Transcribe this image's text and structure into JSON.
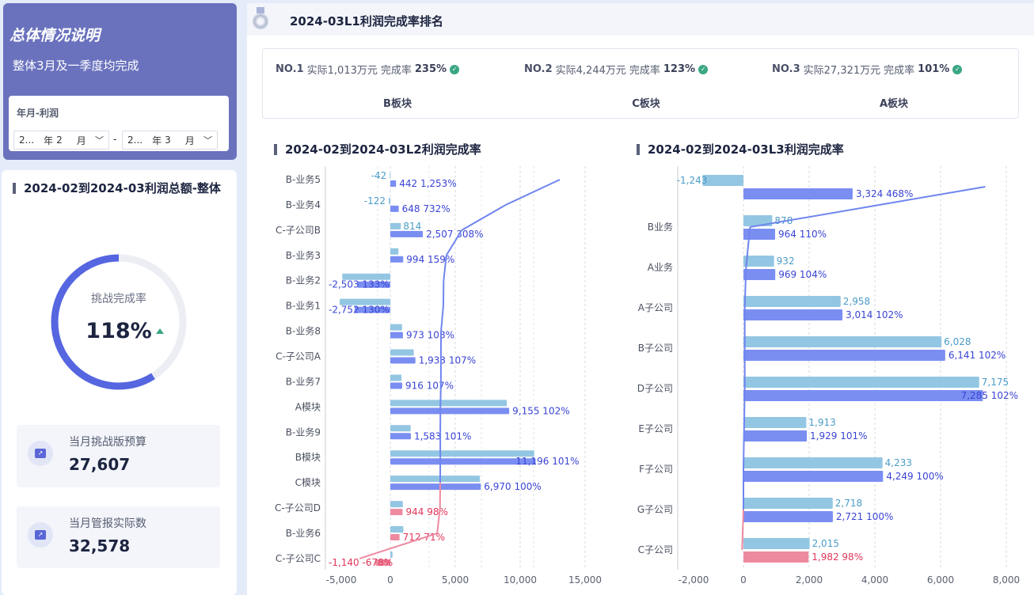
{
  "summary": {
    "title": "总体情况说明",
    "subtitle": "整体3月及一季度均完成",
    "filter": {
      "label": "年月-利润",
      "start": {
        "year": "2...",
        "year_unit": "年",
        "month": "2",
        "month_unit": "月"
      },
      "end": {
        "year": "2...",
        "year_unit": "年",
        "month": "3",
        "month_unit": "月"
      },
      "separator": "-"
    }
  },
  "total": {
    "title": "2024-02到2024-03利润总额-整体",
    "gauge": {
      "label": "挑战完成率",
      "value": "118%",
      "fill_fraction": 0.59,
      "trend": "up",
      "color": "#5566e0",
      "track_color": "#eceef4"
    },
    "cards": [
      {
        "label": "当月挑战版预算",
        "value": "27,607"
      },
      {
        "label": "当月管报实际数",
        "value": "32,578"
      }
    ]
  },
  "ranking": {
    "title": "2024-03L1利润完成率排名",
    "items": [
      {
        "no": "NO.1",
        "actual": "实际1,013万元",
        "rate_label": "完成率",
        "rate": "235%",
        "name": "B板块"
      },
      {
        "no": "NO.2",
        "actual": "实际4,244万元",
        "rate_label": "完成率",
        "rate": "123%",
        "name": "C板块"
      },
      {
        "no": "NO.3",
        "actual": "实际27,321万元",
        "rate_label": "完成率",
        "rate": "101%",
        "name": "A板块"
      }
    ]
  },
  "colors": {
    "light_bar": "#93c6e2",
    "actual_bar": "#7a8ef2",
    "below_target": "#ee8aa0",
    "light_label": "#4a9cc7",
    "actual_label": "#3a44d4",
    "below_label": "#e0365a",
    "line": "#6f85f0"
  },
  "chart_data": [
    {
      "type": "bar",
      "title": "2024-02到2024-03L2利润完成率",
      "orientation": "horizontal",
      "xlim": [
        -5000,
        15000
      ],
      "ticks": [
        "-5,000",
        "0",
        "5,000",
        "10,000",
        "15,000"
      ],
      "grid": true,
      "categories": [
        "B-业务5",
        "B-业务4",
        "C-子公司B",
        "B-业务3",
        "B-业务2",
        "B-业务1",
        "B-业务8",
        "C-子公司A",
        "B-业务7",
        "A模块",
        "B-业务9",
        "B模块",
        "C模块",
        "C-子公司D",
        "B-业务6",
        "C-子公司C"
      ],
      "series": [
        {
          "values": [
            -42,
            -122,
            814,
            625,
            -3700,
            -3900,
            900,
            1807,
            856,
            8975,
            1567,
            11085,
            6900,
            963,
            1003,
            168
          ],
          "labels": [
            "-42",
            "-122",
            "814",
            null,
            null,
            null,
            null,
            null,
            null,
            null,
            null,
            null,
            null,
            null,
            null,
            null
          ]
        },
        {
          "values": [
            442,
            648,
            2507,
            994,
            -2503,
            -2752,
            973,
            1933,
            916,
            9155,
            1583,
            11196,
            6970,
            944,
            712,
            -1140
          ]
        },
        {
          "type": "line",
          "values": [
            1253,
            732,
            308,
            159,
            133,
            130,
            108,
            107,
            107,
            102,
            101,
            101,
            100,
            98,
            71,
            -678
          ]
        }
      ]
    },
    {
      "type": "bar",
      "title": "2024-02到2024-03L3利润完成率",
      "orientation": "horizontal",
      "xlim": [
        -2000,
        8000
      ],
      "ticks": [
        "-2,000",
        "0",
        "2,000",
        "4,000",
        "6,000",
        "8,000"
      ],
      "grid": true,
      "categories": [
        "",
        "B业务",
        "A业务",
        "A子公司",
        "B子公司",
        "D子公司",
        "E子公司",
        "F子公司",
        "G子公司",
        "C子公司"
      ],
      "series": [
        {
          "values": [
            -1243,
            878,
            932,
            2958,
            6028,
            7175,
            1913,
            4233,
            2718,
            2015
          ],
          "labels": [
            "-1,243",
            "878",
            "932",
            "2,958",
            "6,028",
            "7,175",
            "1,913",
            "4,233",
            "2,718",
            "2,015"
          ]
        },
        {
          "values": [
            3324,
            964,
            969,
            3014,
            6141,
            7285,
            1929,
            4249,
            2721,
            1982
          ]
        },
        {
          "type": "line",
          "values": [
            468,
            110,
            104,
            102,
            102,
            102,
            101,
            100,
            100,
            98
          ]
        }
      ]
    }
  ]
}
